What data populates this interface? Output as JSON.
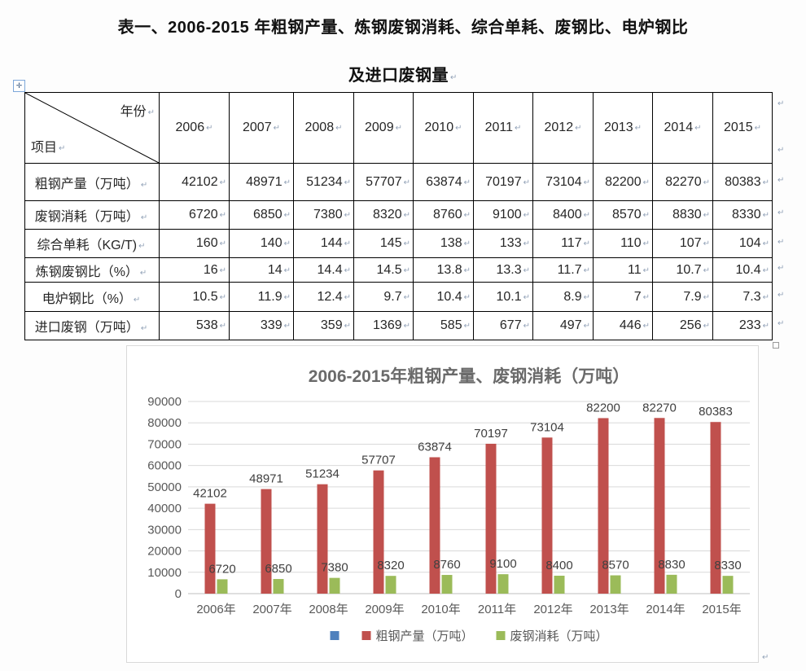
{
  "page": {
    "title_line1": "表一、2006-2015 年粗钢产量、炼钢废钢消耗、综合单耗、废钢比、电炉钢比",
    "title_line2": "及进口废钢量"
  },
  "marks": {
    "paragraph": "↵",
    "move_handle": "✛"
  },
  "table": {
    "corner": {
      "top_right": "年份",
      "bottom_left": "项目"
    },
    "years": [
      "2006",
      "2007",
      "2008",
      "2009",
      "2010",
      "2011",
      "2012",
      "2013",
      "2014",
      "2015"
    ],
    "rows": [
      {
        "label": "粗钢产量（万吨）",
        "values": [
          "42102",
          "48971",
          "51234",
          "57707",
          "63874",
          "70197",
          "73104",
          "82200",
          "82270",
          "80383"
        ]
      },
      {
        "label": "废钢消耗（万吨）",
        "values": [
          "6720",
          "6850",
          "7380",
          "8320",
          "8760",
          "9100",
          "8400",
          "8570",
          "8830",
          "8330"
        ]
      },
      {
        "label": "综合单耗（KG/T)",
        "values": [
          "160",
          "140",
          "144",
          "145",
          "138",
          "133",
          "117",
          "110",
          "107",
          "104"
        ]
      },
      {
        "label": "炼钢废钢比（%）",
        "values": [
          "16",
          "14",
          "14.4",
          "14.5",
          "13.8",
          "13.3",
          "11.7",
          "11",
          "10.7",
          "10.4"
        ]
      },
      {
        "label": "电炉钢比（%）",
        "values": [
          "10.5",
          "11.9",
          "12.4",
          "9.7",
          "10.4",
          "10.1",
          "8.9",
          "7",
          "7.9",
          "7.3"
        ]
      },
      {
        "label": "进口废钢（万吨）",
        "values": [
          "538",
          "339",
          "359",
          "1369",
          "585",
          "677",
          "497",
          "446",
          "256",
          "233"
        ]
      }
    ]
  },
  "chart_data": {
    "type": "bar",
    "title": "2006-2015年粗钢产量、废钢消耗（万吨）",
    "categories": [
      "2006年",
      "2007年",
      "2008年",
      "2009年",
      "2010年",
      "2011年",
      "2012年",
      "2013年",
      "2014年",
      "2015年"
    ],
    "series": [
      {
        "name": "",
        "color": "#4f81bd",
        "values": []
      },
      {
        "name": "粗钢产量（万吨）",
        "color": "#c0504d",
        "values": [
          42102,
          48971,
          51234,
          57707,
          63874,
          70197,
          73104,
          82200,
          82270,
          80383
        ]
      },
      {
        "name": "废钢消耗（万吨）",
        "color": "#9bbb59",
        "values": [
          6720,
          6850,
          7380,
          8320,
          8760,
          9100,
          8400,
          8570,
          8830,
          8330
        ]
      }
    ],
    "ylim": [
      0,
      90000
    ],
    "ytick_step": 10000,
    "grid": true,
    "legend_position": "bottom",
    "colors": {
      "grid": "#d9d9d9",
      "baseline": "#bfbfbf",
      "axis_text": "#595959",
      "title_text": "#6a6a6a",
      "data_label": "#404040"
    }
  }
}
